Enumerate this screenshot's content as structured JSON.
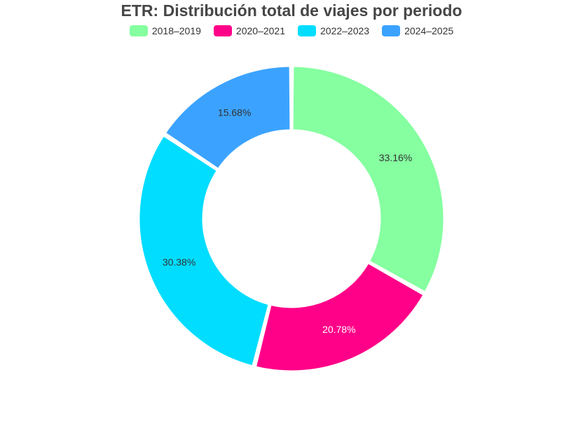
{
  "chart_data": {
    "type": "pie",
    "title": "ETR: Distribución total de viajes por periodo",
    "legend_position": "top",
    "categories": [
      "2018–2019",
      "2020–2021",
      "2022–2023",
      "2024–2025"
    ],
    "values": [
      33.16,
      20.78,
      30.38,
      15.68
    ],
    "labels": [
      "33.16%",
      "20.78%",
      "30.38%",
      "15.68%"
    ],
    "colors": [
      "#85ffa0",
      "#ff0088",
      "#00ddff",
      "#3ba3ff"
    ],
    "label_colors": [
      "#333333",
      "#ffffff",
      "#333333",
      "#333333"
    ]
  }
}
